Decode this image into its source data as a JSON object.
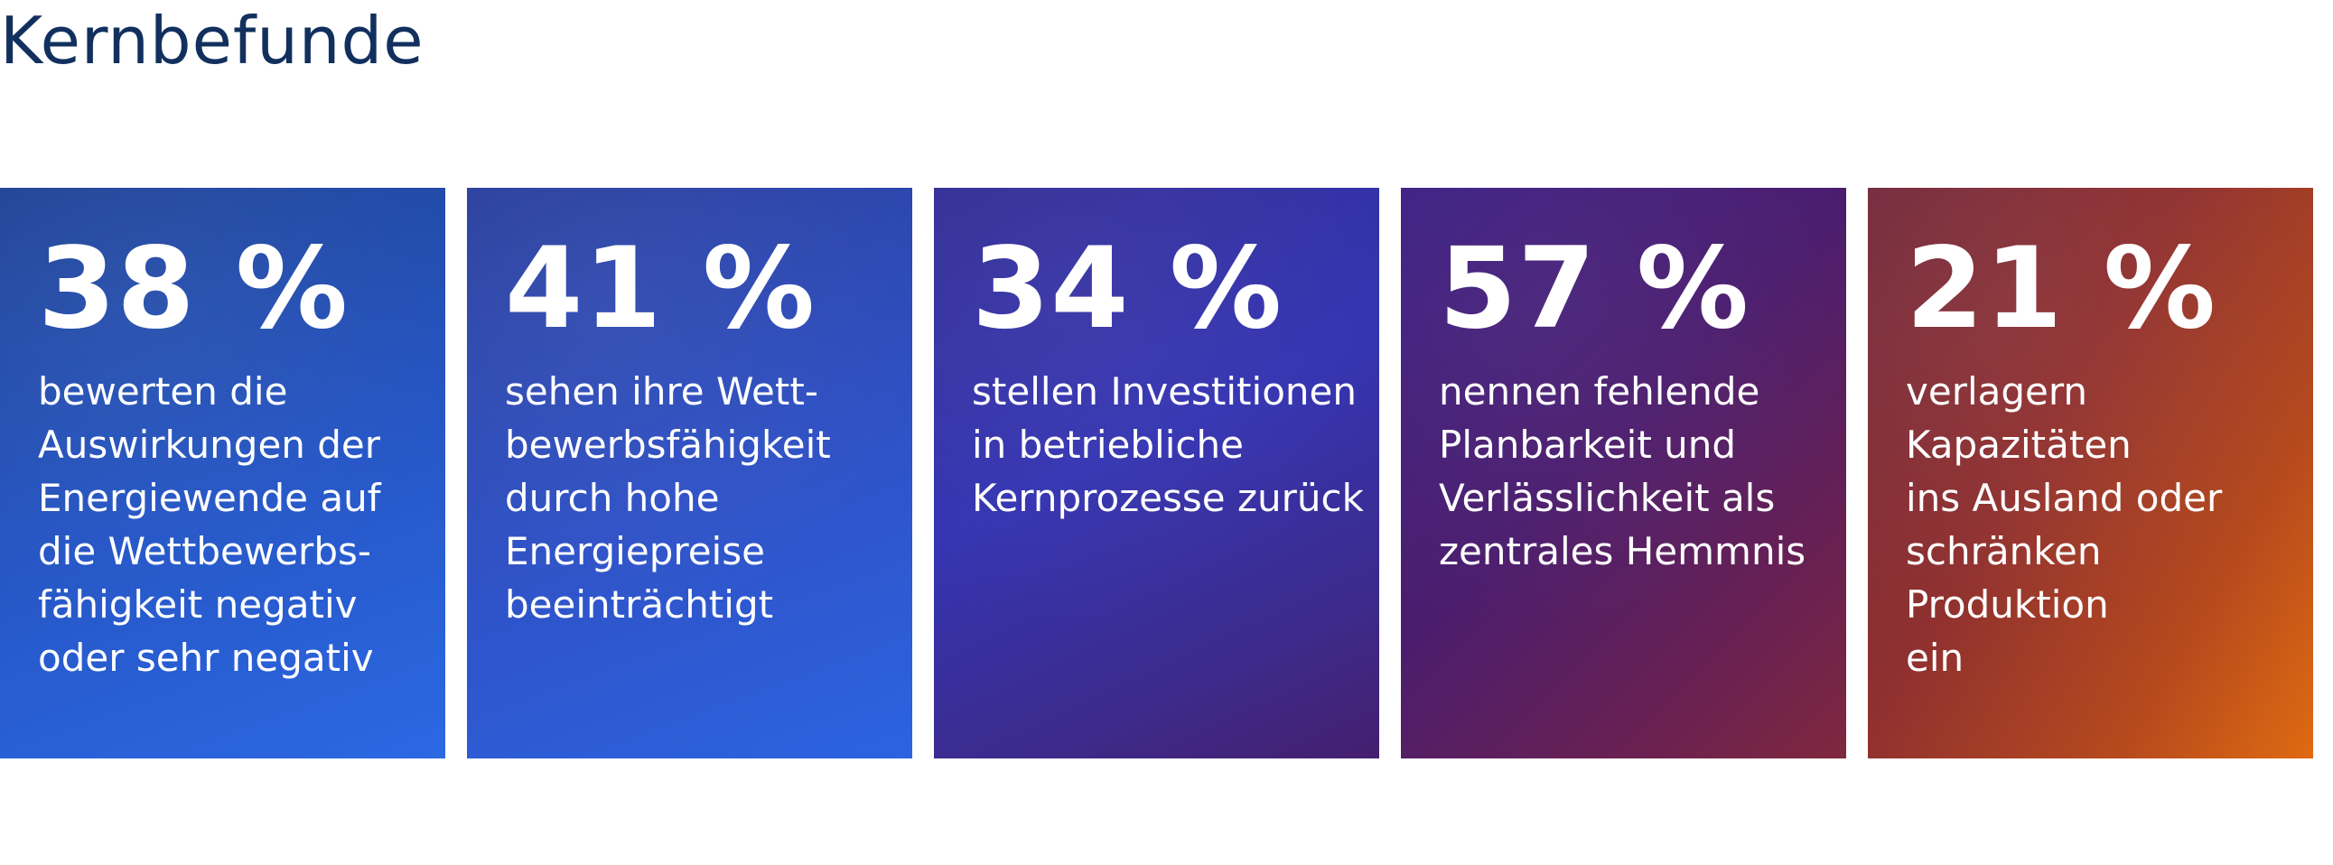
{
  "title": "Kernbefunde",
  "panels": [
    {
      "percent": "38 %",
      "text": "bewerten die\nAuswirkungen der\nEnergiewende auf\ndie Wettbewerbs-\nfähigkeit negativ\noder sehr negativ"
    },
    {
      "percent": "41 %",
      "text": "sehen ihre Wett-\nbewerbsfähigkeit\ndurch hohe\nEnergiepreise\nbeeinträchtigt"
    },
    {
      "percent": "34 %",
      "text": "stellen Investitionen\nin betriebliche\nKernprozesse zurück"
    },
    {
      "percent": "57 %",
      "text": "nennen fehlende\nPlanbarkeit und\nVerlässlichkeit als\nzentrales Hemmnis"
    },
    {
      "percent": "21 %",
      "text": "verlagern Kapazitäten\nins Ausland oder\nschränken Produktion\nein"
    }
  ]
}
